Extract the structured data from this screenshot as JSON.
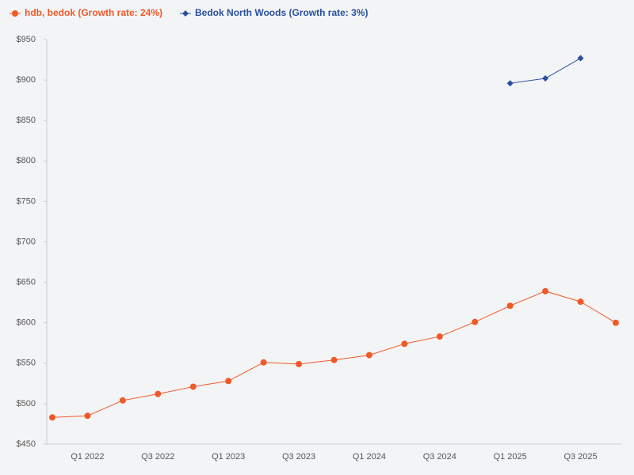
{
  "chart_data": {
    "type": "line",
    "categories": [
      null,
      "Q1 2022",
      null,
      "Q3 2022",
      null,
      "Q1 2023",
      null,
      "Q3 2023",
      null,
      "Q1 2024",
      null,
      "Q3 2024",
      null,
      "Q1 2025",
      null,
      "Q3 2025",
      null
    ],
    "series": [
      {
        "name": "hdb, bedok (Growth rate: 24%)",
        "color": "#f05a28",
        "marker": "circle",
        "values": [
          483,
          485,
          504,
          512,
          521,
          528,
          551,
          549,
          554,
          560,
          574,
          583,
          601,
          621,
          639,
          626,
          600
        ]
      },
      {
        "name": "Bedok North Woods (Growth rate: 3%)",
        "color": "#2b4f9e",
        "marker": "diamond",
        "values": [
          null,
          null,
          null,
          null,
          null,
          null,
          null,
          null,
          null,
          null,
          null,
          null,
          null,
          896,
          902,
          927,
          null
        ]
      }
    ],
    "ylim": [
      450,
      950
    ],
    "yticks": [
      {
        "value": 450,
        "label": "$450"
      },
      {
        "value": 500,
        "label": "$500"
      },
      {
        "value": 550,
        "label": "$550"
      },
      {
        "value": 600,
        "label": "$600"
      },
      {
        "value": 650,
        "label": "$650"
      },
      {
        "value": 700,
        "label": "$700"
      },
      {
        "value": 750,
        "label": "$750"
      },
      {
        "value": 800,
        "label": "$800"
      },
      {
        "value": 850,
        "label": "$850"
      },
      {
        "value": 900,
        "label": "$900"
      },
      {
        "value": 950,
        "label": "$950"
      }
    ],
    "grid": false
  }
}
